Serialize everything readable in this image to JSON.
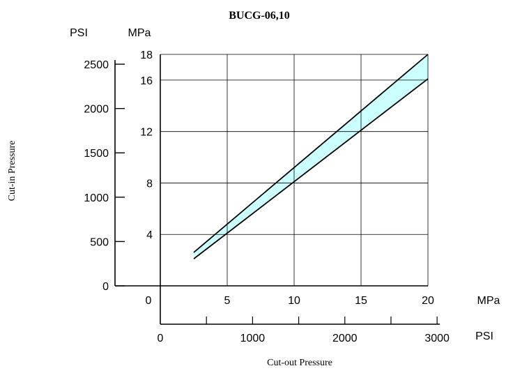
{
  "chart_data": {
    "type": "area",
    "title": "BUCG-06,10",
    "ylabel": "Cut-in Pressure",
    "xlabel": "Cut-out Pressure",
    "x_unit_mpa": "MPa",
    "x_unit_psi": "PSI",
    "y_unit_psi": "PSI",
    "y_unit_mpa": "MPa",
    "xlim": [
      0,
      20
    ],
    "ylim": [
      0,
      18
    ],
    "x_ticks_mpa": [
      "0",
      "5",
      "10",
      "15",
      "20"
    ],
    "x_ticks_psi": [
      "0",
      "1000",
      "2000",
      "3000"
    ],
    "y_ticks_psi": [
      "0",
      "500",
      "1000",
      "1500",
      "2000",
      "2500"
    ],
    "y_ticks_mpa": [
      "4",
      "8",
      "12",
      "16",
      "18"
    ],
    "grid": true,
    "band_color": "#ccffff",
    "series": [
      {
        "x": [
          2.5,
          20
        ],
        "y": [
          2.6,
          18.0
        ]
      },
      {
        "x": [
          2.5,
          20
        ],
        "y": [
          2.1,
          16.1
        ]
      }
    ]
  }
}
